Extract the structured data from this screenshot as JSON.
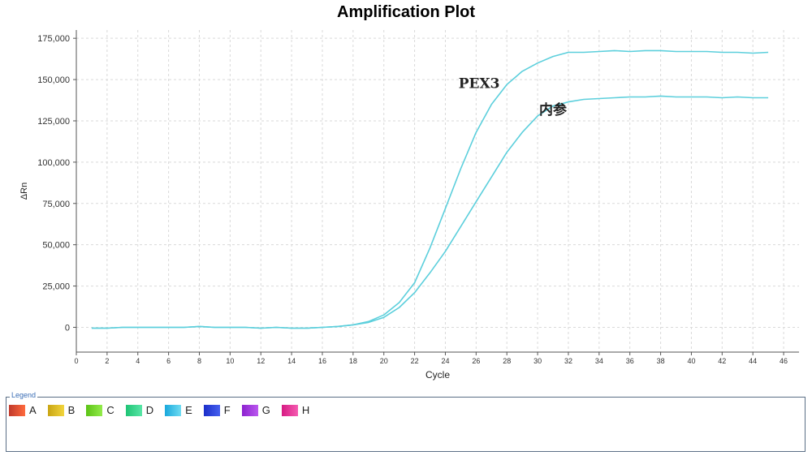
{
  "chart_data": {
    "type": "line",
    "title": "Amplification Plot",
    "xlabel": "Cycle",
    "ylabel": "ΔRn",
    "xlim": [
      0,
      47
    ],
    "ylim": [
      -15000,
      180000
    ],
    "xticks": [
      0,
      2,
      4,
      6,
      8,
      10,
      12,
      14,
      16,
      18,
      20,
      22,
      24,
      26,
      28,
      30,
      32,
      34,
      36,
      38,
      40,
      42,
      44,
      46
    ],
    "yticks": [
      0,
      25000,
      50000,
      75000,
      100000,
      125000,
      150000,
      175000
    ],
    "ytick_labels": [
      "0",
      "25,000",
      "50,000",
      "75,000",
      "100,000",
      "125,000",
      "150,000",
      "175,000"
    ],
    "grid": true,
    "line_color": "#5ccfdc",
    "x": [
      1,
      2,
      3,
      4,
      5,
      6,
      7,
      8,
      9,
      10,
      11,
      12,
      13,
      14,
      15,
      16,
      17,
      18,
      19,
      20,
      21,
      22,
      23,
      24,
      25,
      26,
      27,
      28,
      29,
      30,
      31,
      32,
      33,
      34,
      35,
      36,
      37,
      38,
      39,
      40,
      41,
      42,
      43,
      44,
      45
    ],
    "series": [
      {
        "name": "PEX3",
        "values": [
          -500,
          -500,
          0,
          0,
          0,
          0,
          0,
          500,
          0,
          0,
          0,
          -500,
          0,
          -500,
          -500,
          0,
          500,
          1500,
          3500,
          7500,
          15000,
          27000,
          48000,
          72000,
          96000,
          118000,
          135000,
          147000,
          155000,
          160000,
          164000,
          166500,
          166500,
          167000,
          167500,
          167000,
          167500,
          167500,
          167000,
          167000,
          167000,
          166500,
          166500,
          166000,
          166500
        ]
      },
      {
        "name": "内参",
        "values": [
          -500,
          -500,
          0,
          0,
          0,
          0,
          0,
          500,
          0,
          0,
          0,
          -500,
          0,
          -500,
          -500,
          0,
          500,
          1500,
          3000,
          6000,
          12000,
          21000,
          33000,
          46000,
          61000,
          76000,
          91000,
          106000,
          118000,
          128000,
          134000,
          136500,
          138000,
          138500,
          139000,
          139500,
          139500,
          140000,
          139500,
          139500,
          139500,
          139000,
          139500,
          139000,
          139000
        ]
      }
    ],
    "annotations": [
      {
        "text": "PEX3",
        "x": 26.2,
        "y": 145000
      },
      {
        "text": "内参",
        "x": 31.0,
        "y": 129000
      }
    ]
  },
  "legend": {
    "caption": "Legend",
    "items": [
      {
        "label": "A",
        "color_from": "#c0392b",
        "color_to": "#ff6a3d"
      },
      {
        "label": "B",
        "color_from": "#c9a514",
        "color_to": "#f2d53c"
      },
      {
        "label": "C",
        "color_from": "#5cc316",
        "color_to": "#93ec4a"
      },
      {
        "label": "D",
        "color_from": "#1fc475",
        "color_to": "#59e6a7"
      },
      {
        "label": "E",
        "color_from": "#19a8dc",
        "color_to": "#6fdcf2"
      },
      {
        "label": "F",
        "color_from": "#1b2fc9",
        "color_to": "#4660ef"
      },
      {
        "label": "G",
        "color_from": "#8c22cf",
        "color_to": "#bb58ef"
      },
      {
        "label": "H",
        "color_from": "#d61b83",
        "color_to": "#f55cb1"
      }
    ]
  }
}
